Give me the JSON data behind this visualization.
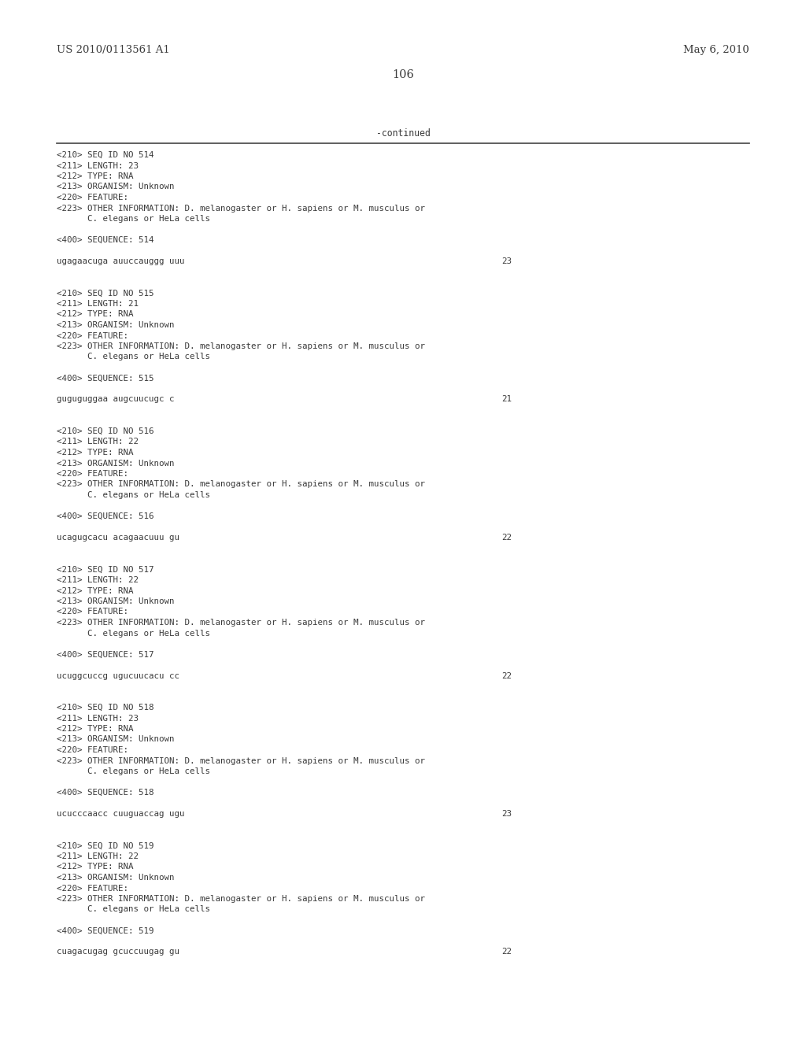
{
  "background_color": "#ffffff",
  "top_left_text": "US 2010/0113561 A1",
  "top_right_text": "May 6, 2010",
  "page_number": "106",
  "continued_text": "-continued",
  "font_color": "#3a3a3a",
  "mono_font_size": 7.8,
  "header_font_size": 9.5,
  "page_num_font_size": 10.5,
  "entries": [
    {
      "seq_id": "514",
      "length": "23",
      "type": "RNA",
      "organism": "Unknown",
      "other_info_line1": "D. melanogaster or H. sapiens or M. musculus or",
      "other_info_line2": "      C. elegans or HeLa cells",
      "sequence": "ugagaacuga auuccauggg uuu",
      "seq_length_num": "23"
    },
    {
      "seq_id": "515",
      "length": "21",
      "type": "RNA",
      "organism": "Unknown",
      "other_info_line1": "D. melanogaster or H. sapiens or M. musculus or",
      "other_info_line2": "      C. elegans or HeLa cells",
      "sequence": "guguguggaa augcuucugc c",
      "seq_length_num": "21"
    },
    {
      "seq_id": "516",
      "length": "22",
      "type": "RNA",
      "organism": "Unknown",
      "other_info_line1": "D. melanogaster or H. sapiens or M. musculus or",
      "other_info_line2": "      C. elegans or HeLa cells",
      "sequence": "ucagugcacu acagaacuuu gu",
      "seq_length_num": "22"
    },
    {
      "seq_id": "517",
      "length": "22",
      "type": "RNA",
      "organism": "Unknown",
      "other_info_line1": "D. melanogaster or H. sapiens or M. musculus or",
      "other_info_line2": "      C. elegans or HeLa cells",
      "sequence": "ucuggcuccg ugucuucacu cc",
      "seq_length_num": "22"
    },
    {
      "seq_id": "518",
      "length": "23",
      "type": "RNA",
      "organism": "Unknown",
      "other_info_line1": "D. melanogaster or H. sapiens or M. musculus or",
      "other_info_line2": "      C. elegans or HeLa cells",
      "sequence": "ucucccaacc cuuguaccag ugu",
      "seq_length_num": "23"
    },
    {
      "seq_id": "519",
      "length": "22",
      "type": "RNA",
      "organism": "Unknown",
      "other_info_line1": "D. melanogaster or H. sapiens or M. musculus or",
      "other_info_line2": "      C. elegans or HeLa cells",
      "sequence": "cuagacugag gcuccuugag gu",
      "seq_length_num": "22"
    }
  ]
}
